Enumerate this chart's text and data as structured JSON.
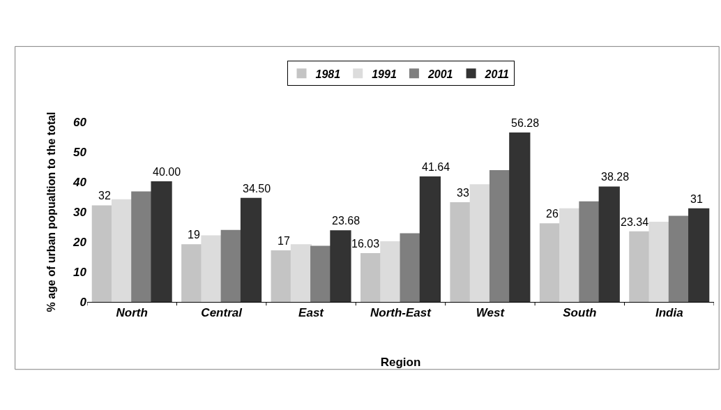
{
  "chart_data": {
    "type": "bar",
    "xlabel": "Region",
    "ylabel": "% age of urban popualtion to the total",
    "categories": [
      "North",
      "Central",
      "East",
      "North-East",
      "West",
      "South",
      "India"
    ],
    "series": [
      {
        "name": "1981",
        "color": "#c4c4c4",
        "values": [
          32,
          19,
          17,
          16.03,
          33,
          26,
          23.34
        ],
        "value_labels": [
          "32",
          "19",
          "17",
          "16.03",
          "33",
          "26",
          "23.34"
        ]
      },
      {
        "name": "1991",
        "color": "#dcdcdc",
        "values": [
          34,
          22,
          19,
          20,
          39,
          31,
          26.5
        ],
        "value_labels": [
          null,
          null,
          null,
          null,
          null,
          null,
          null
        ]
      },
      {
        "name": "2001",
        "color": "#7f7f7f",
        "values": [
          36.6,
          23.8,
          18.5,
          22.7,
          43.7,
          33.3,
          28.5
        ],
        "value_labels": [
          null,
          null,
          null,
          null,
          null,
          null,
          null
        ]
      },
      {
        "name": "2011",
        "color": "#333333",
        "values": [
          40.0,
          34.5,
          23.68,
          41.64,
          56.28,
          38.28,
          31
        ],
        "value_labels": [
          "40.00",
          "34.50",
          "23.68",
          "41.64",
          "56.28",
          "38.28",
          "31"
        ]
      }
    ],
    "ylim": [
      0,
      60
    ],
    "yticks": [
      0,
      10,
      20,
      30,
      40,
      50,
      60
    ],
    "grid": false,
    "legend": "top"
  }
}
